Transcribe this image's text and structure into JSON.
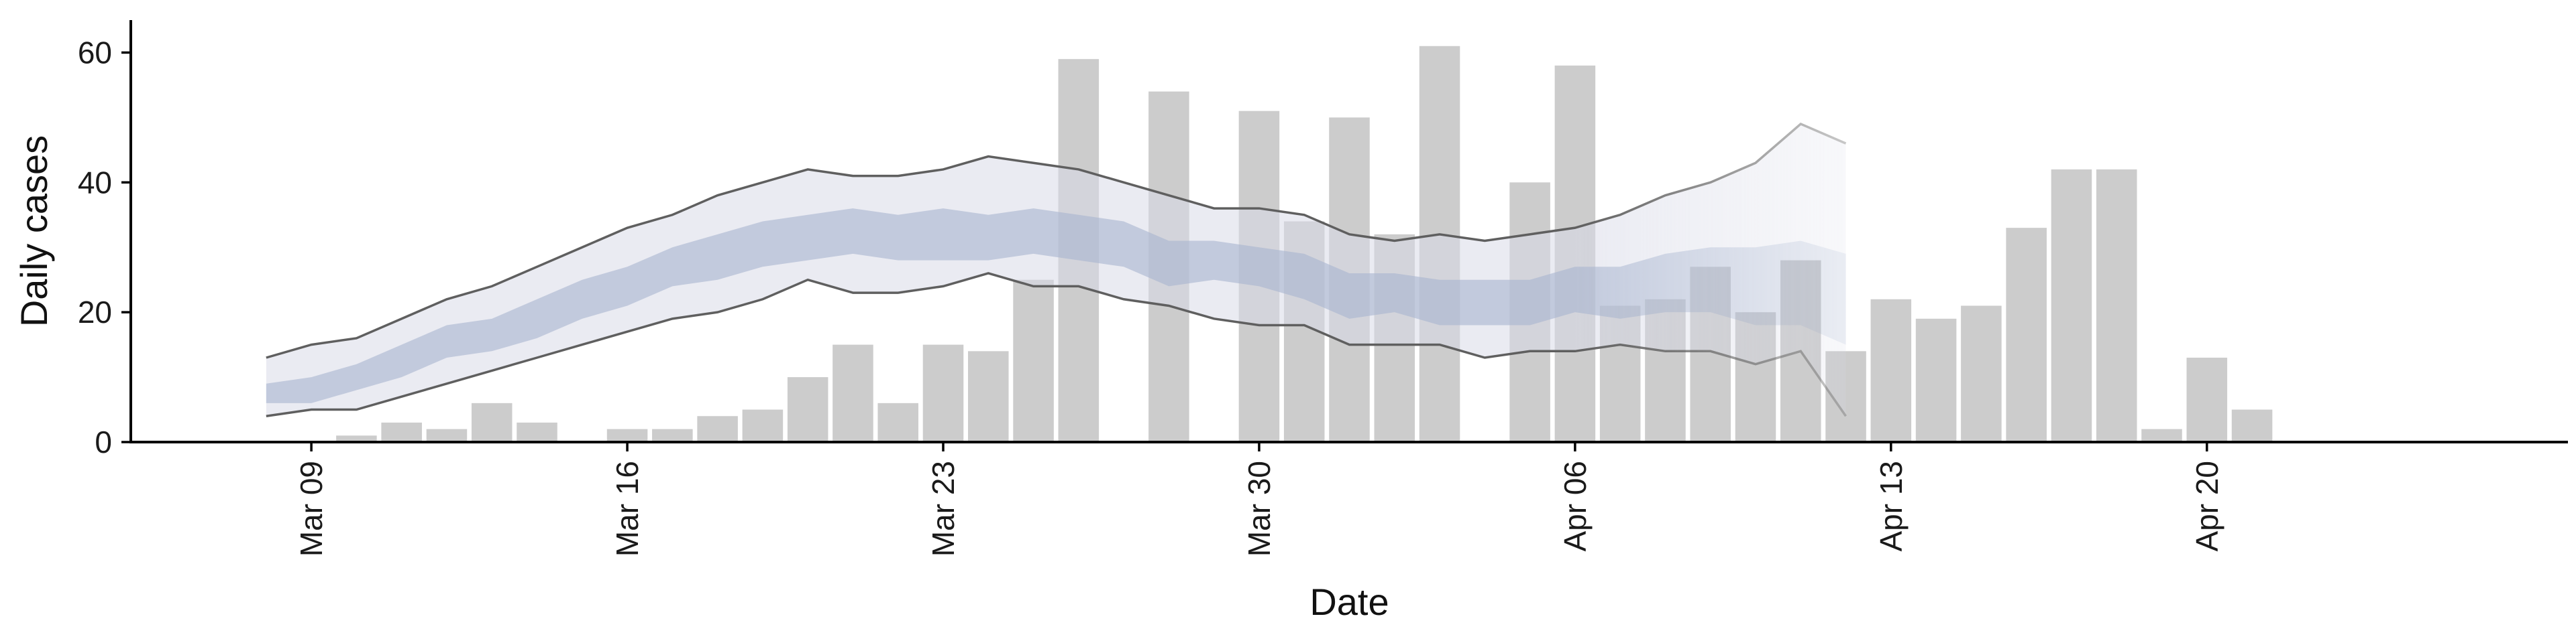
{
  "chart_data": {
    "type": "bar",
    "xlabel": "Date",
    "ylabel": "Daily cases",
    "ylim": [
      0,
      65
    ],
    "y_ticks": [
      0,
      20,
      40,
      60
    ],
    "x_range": [
      "2020-03-05",
      "2020-04-28"
    ],
    "x_ticks": [
      {
        "date": "2020-03-09",
        "label": "Mar 09"
      },
      {
        "date": "2020-03-16",
        "label": "Mar 16"
      },
      {
        "date": "2020-03-23",
        "label": "Mar 23"
      },
      {
        "date": "2020-03-30",
        "label": "Mar 30"
      },
      {
        "date": "2020-04-06",
        "label": "Apr 06"
      },
      {
        "date": "2020-04-13",
        "label": "Apr 13"
      },
      {
        "date": "2020-04-20",
        "label": "Apr 20"
      }
    ],
    "grid": false,
    "colors": {
      "bars": "#cccccc",
      "outer_band": "#d9dbe8",
      "inner_band": "#a9b4cf",
      "bound_lines": "#5f5f5f",
      "axes": "#000000"
    },
    "bars": [
      {
        "date": "2020-03-10",
        "value": 1
      },
      {
        "date": "2020-03-11",
        "value": 3
      },
      {
        "date": "2020-03-12",
        "value": 2
      },
      {
        "date": "2020-03-13",
        "value": 6
      },
      {
        "date": "2020-03-14",
        "value": 3
      },
      {
        "date": "2020-03-16",
        "value": 2
      },
      {
        "date": "2020-03-17",
        "value": 2
      },
      {
        "date": "2020-03-18",
        "value": 4
      },
      {
        "date": "2020-03-19",
        "value": 5
      },
      {
        "date": "2020-03-20",
        "value": 10
      },
      {
        "date": "2020-03-21",
        "value": 15
      },
      {
        "date": "2020-03-22",
        "value": 6
      },
      {
        "date": "2020-03-23",
        "value": 15
      },
      {
        "date": "2020-03-24",
        "value": 14
      },
      {
        "date": "2020-03-25",
        "value": 25
      },
      {
        "date": "2020-03-26",
        "value": 59
      },
      {
        "date": "2020-03-28",
        "value": 54
      },
      {
        "date": "2020-03-30",
        "value": 51
      },
      {
        "date": "2020-03-31",
        "value": 34
      },
      {
        "date": "2020-04-01",
        "value": 50
      },
      {
        "date": "2020-04-02",
        "value": 32
      },
      {
        "date": "2020-04-03",
        "value": 61
      },
      {
        "date": "2020-04-05",
        "value": 40
      },
      {
        "date": "2020-04-06",
        "value": 58
      },
      {
        "date": "2020-04-07",
        "value": 21
      },
      {
        "date": "2020-04-08",
        "value": 22
      },
      {
        "date": "2020-04-09",
        "value": 27
      },
      {
        "date": "2020-04-10",
        "value": 20
      },
      {
        "date": "2020-04-11",
        "value": 28
      },
      {
        "date": "2020-04-12",
        "value": 14
      },
      {
        "date": "2020-04-13",
        "value": 22
      },
      {
        "date": "2020-04-14",
        "value": 19
      },
      {
        "date": "2020-04-15",
        "value": 21
      },
      {
        "date": "2020-04-16",
        "value": 33
      },
      {
        "date": "2020-04-17",
        "value": 42
      },
      {
        "date": "2020-04-18",
        "value": 42
      },
      {
        "date": "2020-04-19",
        "value": 2
      },
      {
        "date": "2020-04-20",
        "value": 13
      },
      {
        "date": "2020-04-21",
        "value": 5
      }
    ],
    "band_dates": [
      "2020-03-08",
      "2020-03-09",
      "2020-03-10",
      "2020-03-11",
      "2020-03-12",
      "2020-03-13",
      "2020-03-14",
      "2020-03-15",
      "2020-03-16",
      "2020-03-17",
      "2020-03-18",
      "2020-03-19",
      "2020-03-20",
      "2020-03-21",
      "2020-03-22",
      "2020-03-23",
      "2020-03-24",
      "2020-03-25",
      "2020-03-26",
      "2020-03-27",
      "2020-03-28",
      "2020-03-29",
      "2020-03-30",
      "2020-03-31",
      "2020-04-01",
      "2020-04-02",
      "2020-04-03",
      "2020-04-04",
      "2020-04-05",
      "2020-04-06",
      "2020-04-07",
      "2020-04-08",
      "2020-04-09",
      "2020-04-10",
      "2020-04-11",
      "2020-04-12"
    ],
    "outer_upper": [
      13,
      15,
      16,
      19,
      22,
      24,
      27,
      30,
      33,
      35,
      38,
      40,
      42,
      41,
      41,
      42,
      44,
      43,
      42,
      40,
      38,
      36,
      36,
      35,
      32,
      31,
      32,
      31,
      32,
      33,
      35,
      38,
      40,
      43,
      49,
      46
    ],
    "outer_lower": [
      4,
      5,
      5,
      7,
      9,
      11,
      13,
      15,
      17,
      19,
      20,
      22,
      25,
      23,
      23,
      24,
      26,
      24,
      24,
      22,
      21,
      19,
      18,
      18,
      15,
      15,
      15,
      13,
      14,
      14,
      15,
      14,
      14,
      12,
      14,
      4
    ],
    "inner_upper": [
      9,
      10,
      12,
      15,
      18,
      19,
      22,
      25,
      27,
      30,
      32,
      34,
      35,
      36,
      35,
      36,
      35,
      36,
      35,
      34,
      31,
      31,
      30,
      29,
      26,
      26,
      25,
      25,
      25,
      27,
      27,
      29,
      30,
      30,
      31,
      29
    ],
    "inner_lower": [
      6,
      6,
      8,
      10,
      13,
      14,
      16,
      19,
      21,
      24,
      25,
      27,
      28,
      29,
      28,
      28,
      28,
      29,
      28,
      27,
      24,
      25,
      24,
      22,
      19,
      20,
      18,
      18,
      18,
      20,
      19,
      20,
      20,
      18,
      18,
      15
    ],
    "nowcast_start": "2020-04-06"
  }
}
